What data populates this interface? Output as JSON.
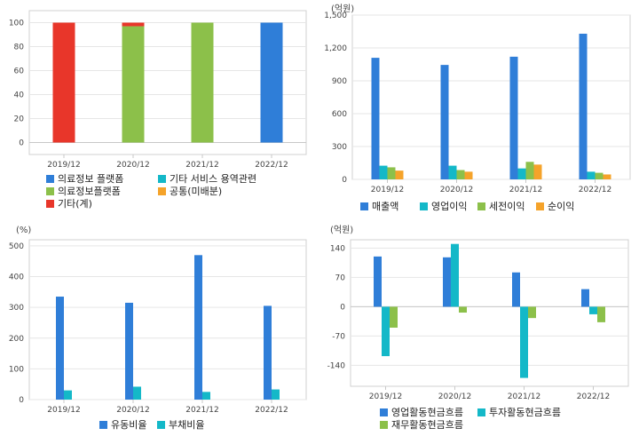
{
  "colors": {
    "blue": "#2f7ed8",
    "cyan": "#14b8c8",
    "green": "#8cc04a",
    "orange": "#f5a32a",
    "red": "#e8362a",
    "grid": "#e6e6e6",
    "axis": "#c8c8c8",
    "frame": "#d0d0d0"
  },
  "chart_data": [
    {
      "type": "bar",
      "stacked": true,
      "categories": [
        "2019/12",
        "2020/12",
        "2021/12",
        "2022/12"
      ],
      "ylim": [
        -10,
        110
      ],
      "yticks": [
        0,
        20,
        40,
        60,
        80,
        100
      ],
      "unit": "",
      "grid": true,
      "legend_position": "bottom",
      "series": [
        {
          "name": "의료정보 플랫폼",
          "color": "blue",
          "values": [
            0,
            0,
            0,
            100
          ]
        },
        {
          "name": "기타 서비스 용역관련",
          "color": "cyan",
          "values": [
            0,
            0,
            0,
            0
          ]
        },
        {
          "name": "의료정보플랫폼",
          "color": "green",
          "values": [
            0,
            97,
            100,
            0
          ]
        },
        {
          "name": "공통(미배분)",
          "color": "orange",
          "values": [
            0,
            0,
            0,
            0
          ]
        },
        {
          "name": "기타(계)",
          "color": "red",
          "values": [
            100,
            3,
            0,
            0
          ]
        }
      ]
    },
    {
      "type": "bar",
      "categories": [
        "2019/12",
        "2020/12",
        "2021/12",
        "2022/12"
      ],
      "ylim": [
        0,
        1500
      ],
      "yticks": [
        0,
        300,
        600,
        900,
        1200,
        1500
      ],
      "ytick_labels": [
        "0",
        "300",
        "600",
        "900",
        "1,200",
        "1,500"
      ],
      "unit": "(억원)",
      "grid": true,
      "legend_position": "bottom",
      "series": [
        {
          "name": "매출액",
          "color": "blue",
          "values": [
            1110,
            1045,
            1120,
            1330
          ]
        },
        {
          "name": "영업이익",
          "color": "cyan",
          "values": [
            125,
            125,
            100,
            70
          ]
        },
        {
          "name": "세전이익",
          "color": "green",
          "values": [
            110,
            85,
            160,
            60
          ]
        },
        {
          "name": "순이익",
          "color": "orange",
          "values": [
            80,
            70,
            135,
            45
          ]
        }
      ]
    },
    {
      "type": "bar",
      "categories": [
        "2019/12",
        "2020/12",
        "2021/12",
        "2022/12"
      ],
      "ylim": [
        0,
        520
      ],
      "yticks": [
        0,
        100,
        200,
        300,
        400,
        500
      ],
      "unit": "(%)",
      "grid": true,
      "legend_position": "bottom",
      "series": [
        {
          "name": "유동비율",
          "color": "blue",
          "values": [
            335,
            315,
            470,
            305
          ]
        },
        {
          "name": "부채비율",
          "color": "cyan",
          "values": [
            30,
            42,
            25,
            33
          ]
        }
      ]
    },
    {
      "type": "bar",
      "categories": [
        "2019/12",
        "2020/12",
        "2021/12",
        "2022/12"
      ],
      "ylim": [
        -190,
        160
      ],
      "yticks": [
        -140,
        -70,
        0,
        70,
        140
      ],
      "unit": "(억원)",
      "grid": true,
      "legend_position": "bottom",
      "series": [
        {
          "name": "영업활동현금흐름",
          "color": "blue",
          "values": [
            120,
            118,
            82,
            42
          ]
        },
        {
          "name": "투자활동현금흐름",
          "color": "cyan",
          "values": [
            -118,
            150,
            -170,
            -18
          ]
        },
        {
          "name": "재무활동현금흐름",
          "color": "green",
          "values": [
            -50,
            -14,
            -27,
            -37
          ]
        }
      ]
    }
  ]
}
